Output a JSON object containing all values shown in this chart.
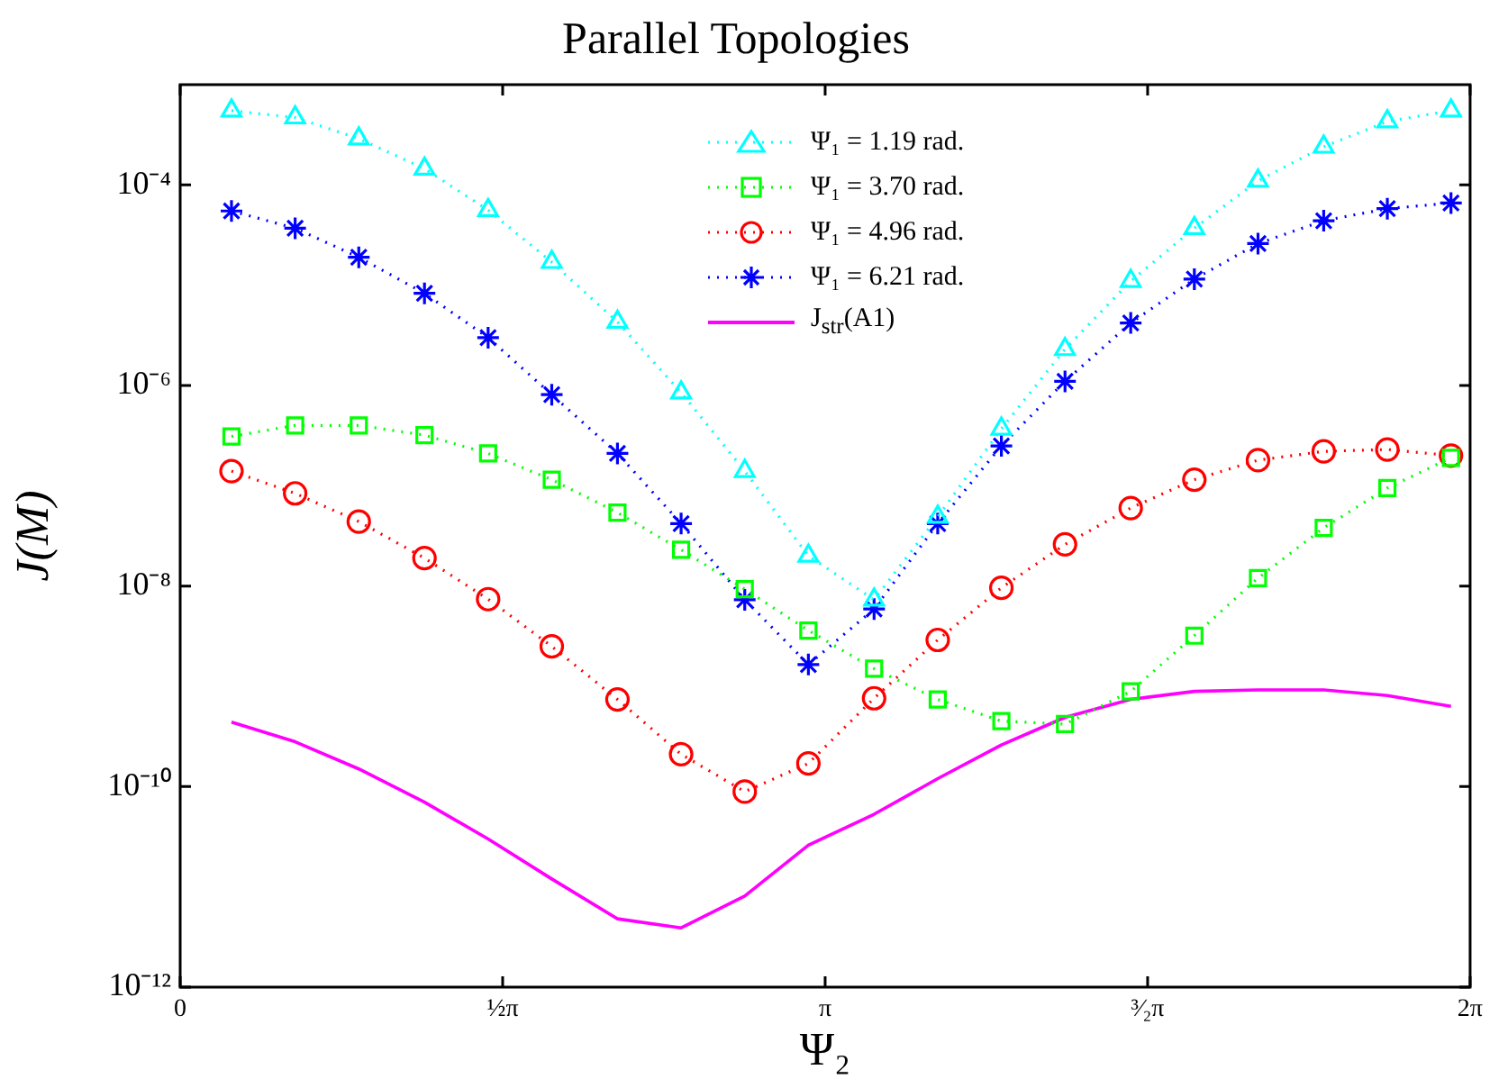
{
  "chart_data": {
    "type": "line",
    "title": "Parallel Topologies",
    "xlabel": "Ψ₂",
    "ylabel": "J(M)",
    "x": [
      0.25,
      0.56,
      0.87,
      1.19,
      1.5,
      1.81,
      2.13,
      2.44,
      2.75,
      3.06,
      3.38,
      3.69,
      4.0,
      4.31,
      4.63,
      4.94,
      5.25,
      5.57,
      5.88,
      6.19
    ],
    "series": [
      {
        "name": "Ψ₁ = 1.19 rad.",
        "color": "#00ffff",
        "marker": "triangle",
        "line_style": "dotted",
        "values": [
          0.00055,
          0.00047,
          0.00029,
          0.000145,
          5.6e-05,
          1.7e-05,
          4.3e-06,
          8.5e-07,
          1.4e-07,
          2e-08,
          7.3e-09,
          4.9e-08,
          3.7e-07,
          2.3e-06,
          1.1e-05,
          3.7e-05,
          0.00011,
          0.00024,
          0.00043,
          0.00055
        ]
      },
      {
        "name": "Ψ₁ = 3.70 rad.",
        "color": "#00ff00",
        "marker": "square",
        "line_style": "dotted",
        "values": [
          3.1e-07,
          4e-07,
          4e-07,
          3.2e-07,
          2.1e-07,
          1.15e-07,
          5.4e-08,
          2.3e-08,
          9.3e-09,
          3.6e-09,
          1.5e-09,
          7.4e-10,
          4.5e-10,
          4.2e-10,
          8.9e-10,
          3.2e-09,
          1.2e-08,
          3.8e-08,
          9.5e-08,
          1.9e-07
        ]
      },
      {
        "name": "Ψ₁ = 4.96 rad.",
        "color": "#ff0000",
        "marker": "circle",
        "line_style": "dotted",
        "values": [
          1.4e-07,
          8.4e-08,
          4.4e-08,
          1.9e-08,
          7.4e-09,
          2.5e-09,
          7.4e-10,
          2.1e-10,
          8.9e-11,
          1.7e-10,
          7.6e-10,
          2.9e-09,
          9.6e-09,
          2.6e-08,
          6e-08,
          1.15e-07,
          1.8e-07,
          2.2e-07,
          2.3e-07,
          2e-07
        ]
      },
      {
        "name": "Ψ₁ = 6.21 rad.",
        "color": "#0000ff",
        "marker": "cross",
        "line_style": "dotted",
        "values": [
          5.5e-05,
          3.7e-05,
          1.9e-05,
          8.3e-06,
          3e-06,
          8.1e-07,
          2.1e-07,
          4.2e-08,
          7.3e-09,
          1.65e-09,
          5.9e-09,
          4.2e-08,
          2.5e-07,
          1.1e-06,
          4.2e-06,
          1.15e-05,
          2.6e-05,
          4.4e-05,
          5.8e-05,
          6.6e-05
        ]
      },
      {
        "name": "J$_{str}$(A1)",
        "color": "#ff00ff",
        "marker": "none",
        "line_style": "solid",
        "values": [
          4.4e-10,
          2.8e-10,
          1.5e-10,
          7e-11,
          3e-11,
          1.2e-11,
          4.8e-12,
          3.9e-12,
          8.1e-12,
          2.6e-11,
          5.3e-11,
          1.2e-10,
          2.6e-10,
          4.9e-10,
          7.4e-10,
          8.9e-10,
          9.2e-10,
          9.2e-10,
          8.1e-10,
          6.3e-10
        ]
      }
    ],
    "xlim": [
      0,
      6.2832
    ],
    "xticks": [
      0,
      {
        "value": 1.5708,
        "label": "½π"
      },
      {
        "value": 3.1416,
        "label": "π"
      },
      {
        "value": 4.7124,
        "label": "³⁄₂π"
      },
      {
        "value": 6.2832,
        "label": "2π"
      }
    ],
    "log": "y",
    "ylim": [
      1e-12,
      0.001
    ],
    "yticks": [
      {
        "value": 1e-12,
        "label": "10⁻¹²"
      },
      {
        "value": 1e-10,
        "label": "10⁻¹⁰"
      },
      {
        "value": 1e-08,
        "label": "10⁻⁸"
      },
      {
        "value": 1e-06,
        "label": "10⁻⁶"
      },
      {
        "value": 0.0001,
        "label": "10⁻⁴"
      }
    ],
    "grid": false,
    "legend": "top"
  }
}
